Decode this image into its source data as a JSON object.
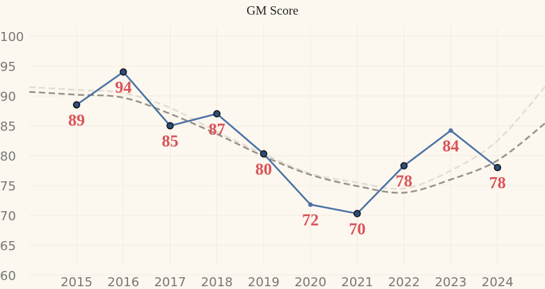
{
  "chart_data": {
    "type": "line",
    "title": "GM Score",
    "xlabel": "",
    "ylabel": "",
    "x": [
      "2015",
      "2016",
      "2017",
      "2018",
      "2019",
      "2020",
      "2021",
      "2022",
      "2023",
      "2024"
    ],
    "series": [
      {
        "values": [
          88.5,
          94,
          85,
          87,
          80.3,
          71.8,
          70.3,
          78.3,
          84.2,
          78
        ],
        "labels": [
          "89",
          "94",
          "85",
          "87",
          "80",
          "72",
          "70",
          "78",
          "84",
          "78"
        ],
        "color": "#4a72a6",
        "marker_fill": "#2d4e7a",
        "marker_stroke": "#111111"
      }
    ],
    "trendlines": [
      {
        "style": "dashed",
        "color": "#999289",
        "values": [
          90.2,
          89.7,
          87.0,
          83.6,
          79.9,
          76.8,
          74.9,
          73.8,
          76.0,
          79.2
        ]
      },
      {
        "style": "dashed",
        "color": "#e3ddd3",
        "values": [
          91.0,
          90.5,
          88.0,
          84.0,
          80.3,
          77.0,
          75.5,
          74.5,
          77.5,
          82.5
        ]
      }
    ],
    "y_ticks": [
      60,
      65,
      70,
      75,
      80,
      85,
      90,
      95,
      100
    ],
    "ylim": [
      58.5,
      101.5
    ],
    "grid": true,
    "legend": "none"
  }
}
